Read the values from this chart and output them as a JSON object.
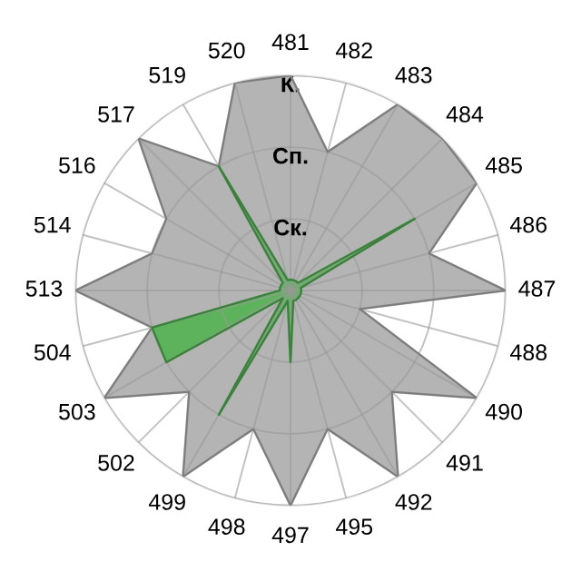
{
  "chart_data": {
    "type": "radar",
    "categories": [
      "481",
      "482",
      "483",
      "484",
      "485",
      "486",
      "487",
      "488",
      "490",
      "491",
      "492",
      "495",
      "497",
      "498",
      "499",
      "502",
      "503",
      "504",
      "513",
      "514",
      "516",
      "517",
      "519",
      "520"
    ],
    "series": [
      {
        "color": "#b4b4b4",
        "values": [
          3,
          2,
          3,
          3,
          3,
          2,
          3,
          1,
          3,
          2,
          3,
          2,
          3,
          2,
          3,
          2,
          3,
          2,
          3,
          2,
          2,
          3,
          2,
          3
        ]
      },
      {
        "color": "#5cb35c",
        "values": [
          0.15,
          0.15,
          0.15,
          0.15,
          2,
          0.15,
          0.15,
          0.15,
          0.15,
          0.15,
          0.15,
          0.15,
          1,
          0.15,
          2,
          0.15,
          2,
          2,
          0.15,
          0.15,
          0.15,
          0.15,
          2,
          0.15
        ]
      }
    ],
    "ylim": [
      0,
      3
    ],
    "yticks": [
      {
        "value": 1,
        "label": "Ск."
      },
      {
        "value": 2,
        "label": "Сп."
      },
      {
        "value": 3,
        "label": "К."
      }
    ],
    "grid": true
  }
}
